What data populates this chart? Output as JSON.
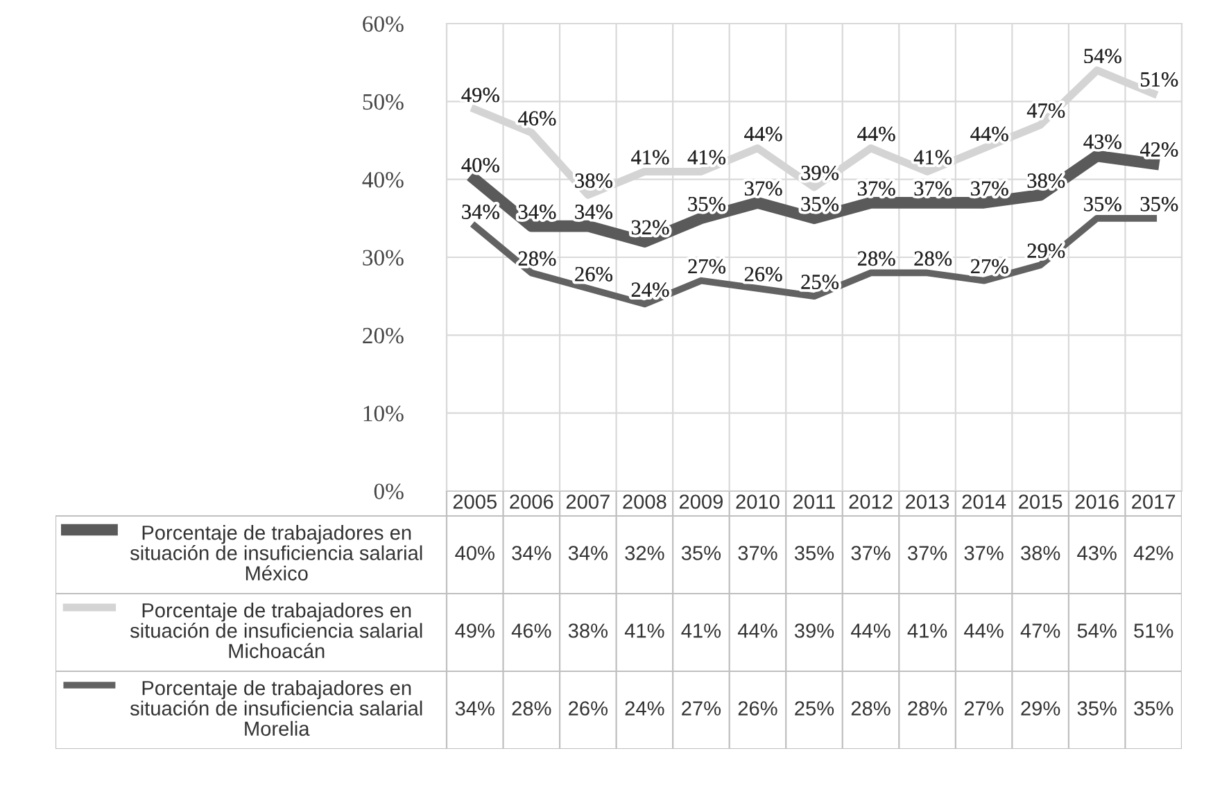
{
  "chart_data": {
    "type": "line",
    "categories": [
      "2005",
      "2006",
      "2007",
      "2008",
      "2009",
      "2010",
      "2011",
      "2012",
      "2013",
      "2014",
      "2015",
      "2016",
      "2017"
    ],
    "series": [
      {
        "name": "Porcentaje de trabajadores en\nsituación de insuficiencia salarial\nMéxico",
        "color": "#5a5a5a",
        "values": [
          40,
          34,
          34,
          32,
          35,
          37,
          35,
          37,
          37,
          37,
          38,
          43,
          42
        ],
        "value_labels": [
          "40%",
          "34%",
          "34%",
          "32%",
          "35%",
          "37%",
          "35%",
          "37%",
          "37%",
          "37%",
          "38%",
          "43%",
          "42%"
        ]
      },
      {
        "name": "Porcentaje de trabajadores en\nsituación de insuficiencia salarial\nMichoacán",
        "color": "#d4d4d4",
        "values": [
          49,
          46,
          38,
          41,
          41,
          44,
          39,
          44,
          41,
          44,
          47,
          54,
          51
        ],
        "value_labels": [
          "49%",
          "46%",
          "38%",
          "41%",
          "41%",
          "44%",
          "39%",
          "44%",
          "41%",
          "44%",
          "47%",
          "54%",
          "51%"
        ]
      },
      {
        "name": "Porcentaje de trabajadores en\nsituación de insuficiencia salarial\nMorelia",
        "color": "#626262",
        "values": [
          34,
          28,
          26,
          24,
          27,
          26,
          25,
          28,
          28,
          27,
          29,
          35,
          35
        ],
        "value_labels": [
          "34%",
          "28%",
          "26%",
          "24%",
          "27%",
          "26%",
          "25%",
          "28%",
          "28%",
          "27%",
          "29%",
          "35%",
          "35%"
        ]
      }
    ],
    "ylim": [
      0,
      60
    ],
    "yticks": [
      {
        "value": 0,
        "label": "0%"
      },
      {
        "value": 10,
        "label": "10%"
      },
      {
        "value": 20,
        "label": "20%"
      },
      {
        "value": 30,
        "label": "30%"
      },
      {
        "value": 40,
        "label": "40%"
      },
      {
        "value": 50,
        "label": "50%"
      },
      {
        "value": 60,
        "label": "60%"
      }
    ],
    "grid": true,
    "legend": "bottom",
    "marker": "none",
    "line_style": "solid"
  }
}
